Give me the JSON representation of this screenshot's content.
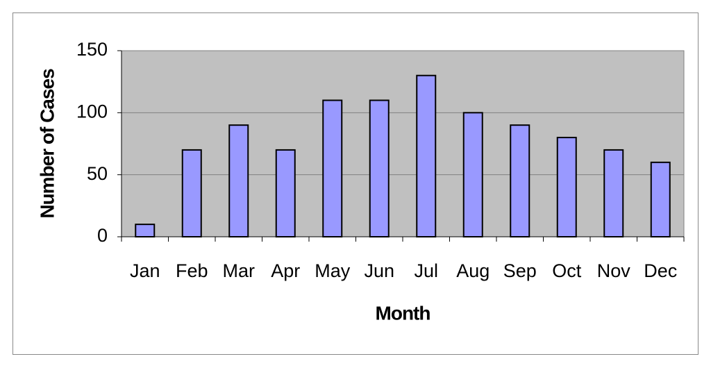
{
  "chart_data": {
    "type": "bar",
    "x_label": "Month",
    "y_label": "Number of Cases",
    "categories": [
      "Jan",
      "Feb",
      "Mar",
      "Apr",
      "May",
      "Jun",
      "Jul",
      "Aug",
      "Sep",
      "Oct",
      "Nov",
      "Dec"
    ],
    "values": [
      10,
      70,
      90,
      70,
      110,
      110,
      130,
      100,
      90,
      80,
      70,
      60
    ],
    "color": "#9999ff",
    "ylim": [
      0,
      150
    ],
    "yticks": [
      0,
      50,
      100,
      150
    ],
    "grid": true
  }
}
